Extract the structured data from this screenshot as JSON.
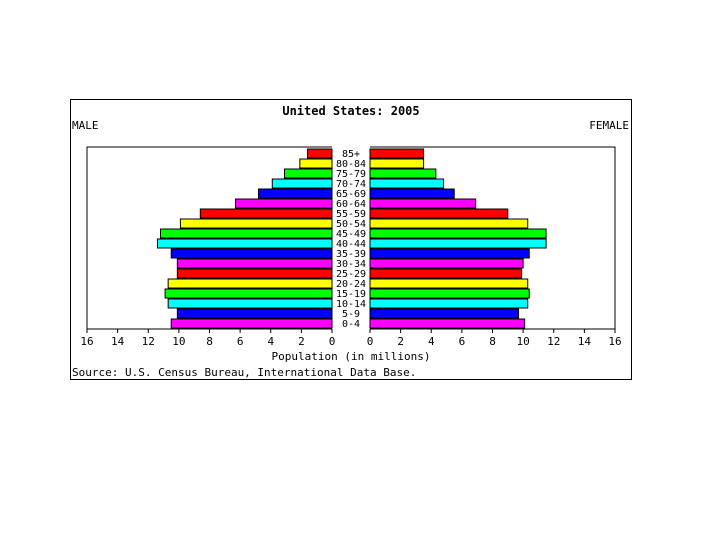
{
  "chart_data": {
    "type": "bar",
    "subtype": "population-pyramid",
    "title": "United States: 2005",
    "left_label": "MALE",
    "right_label": "FEMALE",
    "xlabel": "Population (in millions)",
    "source": "Source: U.S. Census Bureau, International Data Base.",
    "xlim": [
      0,
      16
    ],
    "x_ticks": [
      "16",
      "14",
      "12",
      "10",
      "8",
      "6",
      "4",
      "2",
      "0"
    ],
    "x_ticks_right": [
      "0",
      "2",
      "4",
      "6",
      "8",
      "10",
      "12",
      "14",
      "16"
    ],
    "categories": [
      "85+",
      "80-84",
      "75-79",
      "70-74",
      "65-69",
      "60-64",
      "55-59",
      "50-54",
      "45-49",
      "40-44",
      "35-39",
      "30-34",
      "25-29",
      "20-24",
      "15-19",
      "10-14",
      "5-9",
      "0-4"
    ],
    "series": [
      {
        "name": "MALE",
        "values": [
          1.6,
          2.1,
          3.1,
          3.9,
          4.8,
          6.3,
          8.6,
          9.9,
          11.2,
          11.4,
          10.5,
          10.1,
          10.1,
          10.7,
          10.9,
          10.7,
          10.1,
          10.5
        ]
      },
      {
        "name": "FEMALE",
        "values": [
          3.5,
          3.5,
          4.3,
          4.8,
          5.5,
          6.9,
          9.0,
          10.3,
          11.5,
          11.5,
          10.4,
          10.0,
          9.9,
          10.3,
          10.4,
          10.3,
          9.7,
          10.1
        ]
      }
    ],
    "colors": [
      "#ff0000",
      "#ffff00",
      "#00ff00",
      "#00ffff",
      "#0000ff",
      "#ff00ff"
    ],
    "grid": false
  }
}
